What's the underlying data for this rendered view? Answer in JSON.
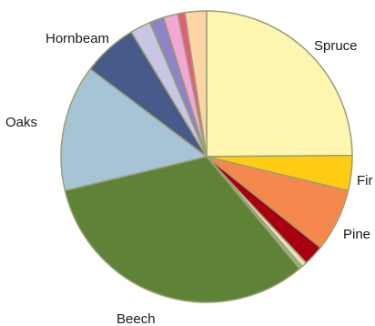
{
  "chart_data": {
    "type": "pie",
    "title": "",
    "start_angle_deg": 0,
    "direction": "clockwise",
    "slices": [
      {
        "label": "Spruce",
        "value": 25.0,
        "color": "#fdf5b0"
      },
      {
        "label": "Fir",
        "value": 3.9,
        "color": "#ffcc14"
      },
      {
        "label": "Pine",
        "value": 7.0,
        "color": "#f5894d"
      },
      {
        "label": "",
        "value": 2.3,
        "color": "#a8000f"
      },
      {
        "label": "",
        "value": 0.6,
        "color": "#e4e4c0"
      },
      {
        "label": "",
        "value": 0.4,
        "color": "#9db27a"
      },
      {
        "label": "Beech",
        "value": 32.4,
        "color": "#5e8236"
      },
      {
        "label": "Oaks",
        "value": 14.1,
        "color": "#a6c4d6"
      },
      {
        "label": "Hornbeam",
        "value": 6.1,
        "color": "#485a8a"
      },
      {
        "label": "",
        "value": 2.3,
        "color": "#c7c7e5"
      },
      {
        "label": "",
        "value": 1.6,
        "color": "#8c83c9"
      },
      {
        "label": "",
        "value": 1.6,
        "color": "#f3a7d4"
      },
      {
        "label": "",
        "value": 0.8,
        "color": "#e85a7a"
      },
      {
        "label": "",
        "value": 2.4,
        "color": "#fcd4a5"
      }
    ],
    "slice_stroke_color": "#9a9f74"
  }
}
